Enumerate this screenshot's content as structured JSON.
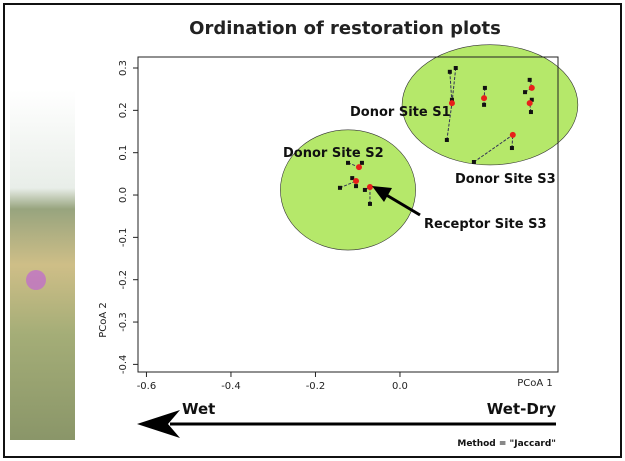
{
  "chart_data": {
    "type": "scatter",
    "title": "Ordination of restoration plots",
    "xlabel": "PCoA 1",
    "ylabel": "PCoA 2",
    "xlim": [
      -0.62,
      0.374
    ],
    "ylim": [
      -0.418,
      0.326
    ],
    "xticks": [
      -0.6,
      -0.4,
      -0.2,
      {
        "value": 0,
        "label": "0.0"
      }
    ],
    "yticks": [
      -0.4,
      -0.3,
      -0.2,
      -0.1,
      {
        "value": 0,
        "label": "0.0"
      },
      0.1,
      0.2,
      0.3
    ],
    "ellipses": [
      {
        "color": "#b5e86a",
        "cx": -0.123,
        "cy": 0.012,
        "rx": 0.16,
        "ry": 0.142
      },
      {
        "color": "#b5e86a",
        "cx": 0.213,
        "cy": 0.213,
        "rx": 0.208,
        "ry": 0.142
      }
    ],
    "series": [
      {
        "color": "#111111",
        "x": [
          -0.123,
          -0.09,
          -0.113,
          -0.142,
          -0.083,
          -0.071,
          -0.104,
          0.118,
          0.132,
          0.111,
          0.123,
          0.201,
          0.199,
          0.175,
          0.307,
          0.312,
          0.31,
          0.265,
          0.296
        ],
        "values": [
          0.076,
          0.076,
          0.04,
          0.017,
          0.012,
          -0.021,
          0.021,
          0.291,
          0.3,
          0.13,
          0.225,
          0.253,
          0.213,
          0.078,
          0.272,
          0.225,
          0.196,
          0.111,
          0.243
        ]
      },
      {
        "color": "#e8201a",
        "x": [
          -0.097,
          -0.104,
          -0.071,
          0.123,
          0.199,
          0.312,
          0.267,
          0.307
        ],
        "values": [
          0.066,
          0.033,
          0.019,
          0.217,
          0.229,
          0.253,
          0.142,
          0.217
        ]
      }
    ],
    "annotations": [
      "Donor Site S1",
      "Donor Site S2",
      "Donor Site S3",
      "Receptor Site S3"
    ],
    "gradient_labels": [
      "Wet",
      "Wet-Dry"
    ],
    "method": "Method = \"Jaccard\""
  }
}
